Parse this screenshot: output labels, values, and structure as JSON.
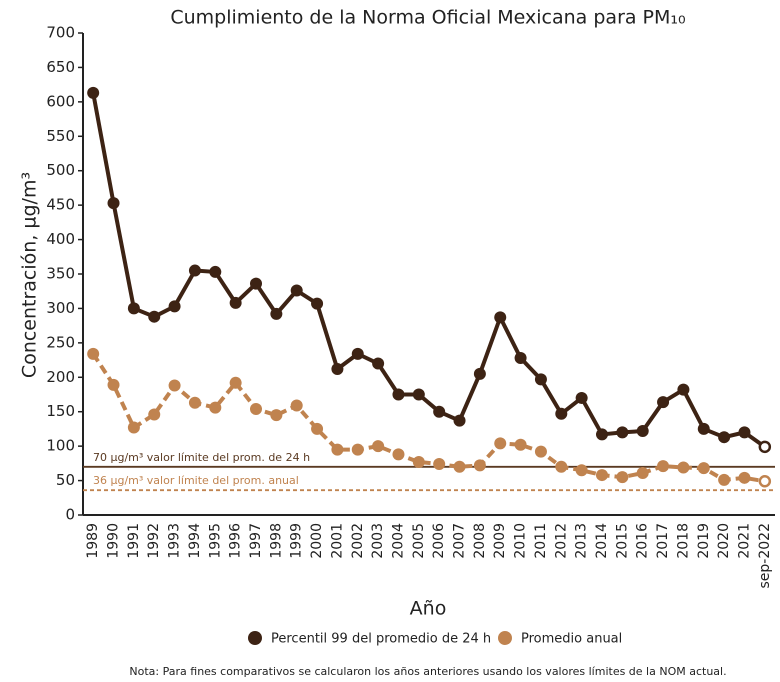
{
  "chart_data": {
    "type": "line",
    "title": "Cumplimiento de la Norma Oficial Mexicana para PM₁₀",
    "x_label": "Año",
    "y_label": "Concentración, µg/m³",
    "note": "Nota: Para fines comparativos se calcularon los años anteriores usando los valores límites de la NOM actual.",
    "categories": [
      "1989",
      "1990",
      "1991",
      "1992",
      "1993",
      "1994",
      "1995",
      "1996",
      "1997",
      "1998",
      "1999",
      "2000",
      "2001",
      "2002",
      "2003",
      "2004",
      "2005",
      "2006",
      "2007",
      "2008",
      "2009",
      "2010",
      "2011",
      "2012",
      "2013",
      "2014",
      "2015",
      "2016",
      "2017",
      "2018",
      "2019",
      "2020",
      "2021",
      "sep-2022"
    ],
    "series": [
      {
        "name": "Percentil 99 del promedio de 24 h",
        "color": "#3d2314",
        "style": "solid",
        "values": [
          613,
          453,
          300,
          288,
          303,
          355,
          353,
          308,
          336,
          292,
          326,
          307,
          212,
          234,
          220,
          175,
          175,
          150,
          137,
          205,
          287,
          228,
          197,
          147,
          170,
          117,
          120,
          122,
          164,
          182,
          125,
          113,
          120,
          99
        ]
      },
      {
        "name": "Promedio anual",
        "color": "#c0834f",
        "style": "dashed",
        "values": [
          234,
          189,
          127,
          146,
          188,
          163,
          156,
          192,
          154,
          145,
          159,
          125,
          95,
          95,
          100,
          88,
          77,
          74,
          70,
          72,
          104,
          102,
          92,
          70,
          65,
          58,
          55,
          61,
          71,
          69,
          68,
          51,
          54,
          49
        ]
      }
    ],
    "last_marker": "open",
    "reference_lines": [
      {
        "value": 70,
        "label": "70 µg/m³ valor límite del prom. de 24 h",
        "color": "#5a3a22",
        "style": "solid"
      },
      {
        "value": 36,
        "label": "36 µg/m³ valor límite del prom. anual",
        "color": "#c0834f",
        "style": "dashed"
      }
    ],
    "ylim": [
      0,
      700
    ],
    "yticks": [
      0,
      50,
      100,
      150,
      200,
      250,
      300,
      350,
      400,
      450,
      500,
      550,
      600,
      650,
      700
    ],
    "legend": "bottom"
  }
}
